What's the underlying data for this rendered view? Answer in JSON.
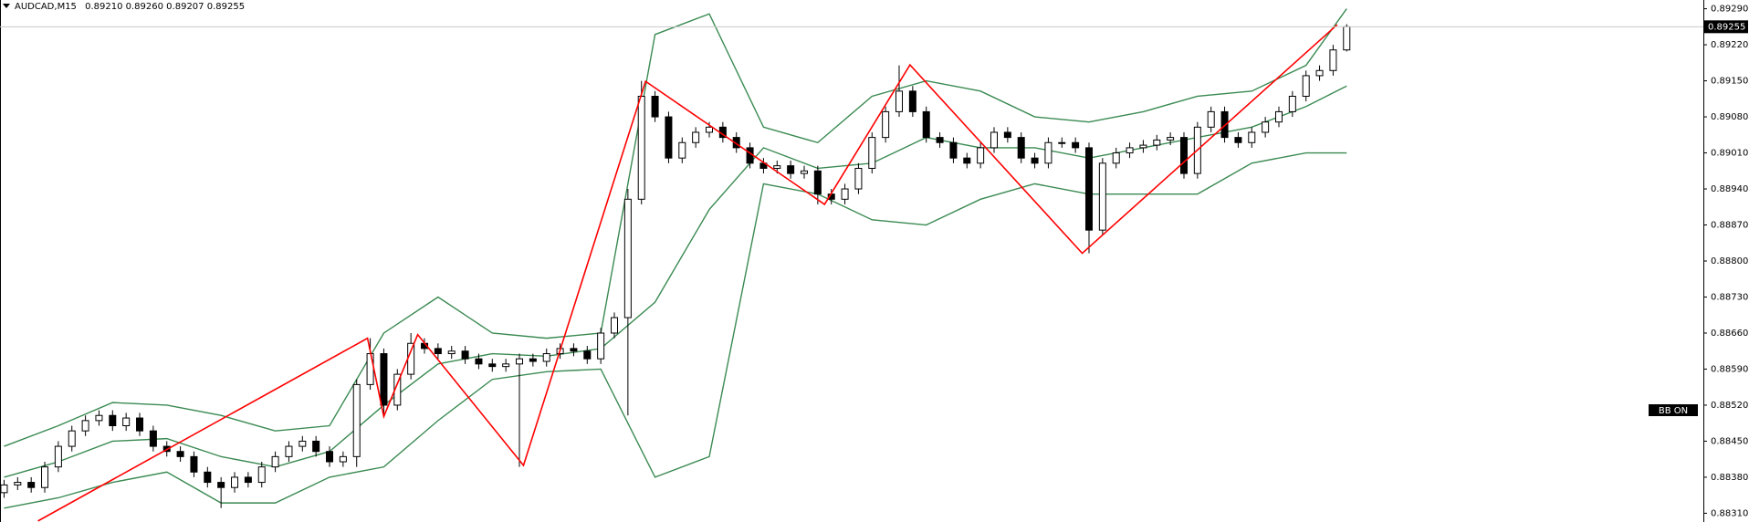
{
  "chart_data": {
    "type": "candlestick",
    "title": "AUDCAD,M15",
    "quote": "0.89210 0.89260 0.89207 0.89255",
    "indicator_label": "BB ON",
    "up_color": "#ffffff",
    "down_color": "#000000",
    "x": [
      0,
      1,
      2,
      3,
      4,
      5,
      6,
      7,
      8,
      9,
      10,
      11,
      12,
      13,
      14,
      15,
      16,
      17,
      18,
      19,
      20,
      21,
      22,
      23,
      24,
      25,
      26,
      27,
      28,
      29,
      30,
      31,
      32,
      33,
      34,
      35,
      36,
      37,
      38,
      39,
      40,
      41,
      42,
      43,
      44,
      45,
      46,
      47,
      48,
      49,
      50,
      51,
      52,
      53,
      54,
      55,
      56,
      57,
      58,
      59,
      60,
      61,
      62,
      63,
      64,
      65,
      66,
      67,
      68,
      69,
      70,
      71,
      72,
      73,
      74,
      75,
      76,
      77,
      78,
      79,
      80,
      81,
      82,
      83,
      84,
      85,
      86,
      87,
      88,
      89,
      90,
      91,
      92,
      93,
      94,
      95,
      96,
      97,
      98,
      99
    ],
    "open": [
      0.8835,
      0.88365,
      0.8837,
      0.8836,
      0.884,
      0.8844,
      0.8847,
      0.8849,
      0.885,
      0.8848,
      0.88495,
      0.8847,
      0.8844,
      0.8843,
      0.8842,
      0.8839,
      0.8837,
      0.8836,
      0.8838,
      0.8837,
      0.884,
      0.8842,
      0.8844,
      0.8845,
      0.8843,
      0.8841,
      0.8842,
      0.8856,
      0.8862,
      0.8852,
      0.8858,
      0.8864,
      0.8863,
      0.8862,
      0.88625,
      0.8861,
      0.886,
      0.88595,
      0.886,
      0.8861,
      0.88605,
      0.8862,
      0.8863,
      0.88625,
      0.8861,
      0.8866,
      0.8869,
      0.8892,
      0.8912,
      0.8908,
      0.89,
      0.8903,
      0.8905,
      0.8906,
      0.8904,
      0.8902,
      0.8899,
      0.8898,
      0.88985,
      0.8897,
      0.88975,
      0.8893,
      0.8892,
      0.8894,
      0.8898,
      0.8904,
      0.8909,
      0.8913,
      0.8909,
      0.8904,
      0.8903,
      0.89,
      0.8899,
      0.8902,
      0.8905,
      0.8904,
      0.89,
      0.8899,
      0.8903,
      0.8903,
      0.8902,
      0.8886,
      0.8899,
      0.8901,
      0.8902,
      0.89025,
      0.89035,
      0.8904,
      0.8897,
      0.8906,
      0.8909,
      0.8904,
      0.8903,
      0.8905,
      0.8907,
      0.8909,
      0.8912,
      0.8916,
      0.8917,
      0.8921
    ],
    "high": [
      0.88375,
      0.8838,
      0.8838,
      0.8841,
      0.8845,
      0.8848,
      0.885,
      0.8851,
      0.8851,
      0.88505,
      0.88505,
      0.8848,
      0.8845,
      0.8844,
      0.8843,
      0.884,
      0.8838,
      0.8839,
      0.8839,
      0.8841,
      0.8843,
      0.8845,
      0.8846,
      0.8846,
      0.8844,
      0.8843,
      0.8857,
      0.8865,
      0.8863,
      0.8859,
      0.8866,
      0.8865,
      0.8864,
      0.88635,
      0.88635,
      0.8862,
      0.8861,
      0.8861,
      0.8862,
      0.8862,
      0.8863,
      0.8864,
      0.8864,
      0.88635,
      0.8867,
      0.887,
      0.8894,
      0.8915,
      0.8913,
      0.8909,
      0.8904,
      0.8906,
      0.8907,
      0.8907,
      0.8905,
      0.8903,
      0.89,
      0.88995,
      0.88995,
      0.88985,
      0.88985,
      0.8894,
      0.8895,
      0.8899,
      0.8905,
      0.891,
      0.8918,
      0.8914,
      0.891,
      0.8905,
      0.8904,
      0.8901,
      0.8903,
      0.8906,
      0.8906,
      0.8905,
      0.8901,
      0.8904,
      0.8904,
      0.8904,
      0.8903,
      0.89,
      0.8902,
      0.8903,
      0.89035,
      0.89045,
      0.8905,
      0.8905,
      0.8907,
      0.891,
      0.891,
      0.8905,
      0.8906,
      0.8908,
      0.891,
      0.8913,
      0.8917,
      0.8918,
      0.8922,
      0.8926
    ],
    "low": [
      0.8834,
      0.88355,
      0.8835,
      0.8835,
      0.8839,
      0.8843,
      0.8846,
      0.8848,
      0.8847,
      0.8847,
      0.8846,
      0.8843,
      0.8842,
      0.8841,
      0.8838,
      0.8836,
      0.8832,
      0.8835,
      0.8836,
      0.8836,
      0.8839,
      0.8841,
      0.8843,
      0.8842,
      0.884,
      0.884,
      0.884,
      0.8855,
      0.885,
      0.8851,
      0.8857,
      0.8862,
      0.8861,
      0.8861,
      0.886,
      0.8859,
      0.88585,
      0.88585,
      0.884,
      0.88595,
      0.88595,
      0.8861,
      0.88615,
      0.886,
      0.886,
      0.8865,
      0.885,
      0.8891,
      0.8907,
      0.8899,
      0.8899,
      0.8902,
      0.8904,
      0.8903,
      0.8901,
      0.8898,
      0.8897,
      0.8897,
      0.8896,
      0.8896,
      0.8891,
      0.8891,
      0.8891,
      0.8893,
      0.8897,
      0.8903,
      0.8908,
      0.8908,
      0.8903,
      0.8902,
      0.8899,
      0.8898,
      0.8898,
      0.8901,
      0.8903,
      0.8899,
      0.8898,
      0.8898,
      0.8902,
      0.8901,
      0.88815,
      0.8885,
      0.8898,
      0.89,
      0.8901,
      0.89015,
      0.89025,
      0.8896,
      0.8896,
      0.8905,
      0.8903,
      0.8902,
      0.8902,
      0.8904,
      0.8906,
      0.8908,
      0.8911,
      0.8915,
      0.8916,
      0.89207
    ],
    "close": [
      0.88365,
      0.8837,
      0.8836,
      0.884,
      0.8844,
      0.8847,
      0.8849,
      0.885,
      0.8848,
      0.88495,
      0.8847,
      0.8844,
      0.8843,
      0.8842,
      0.8839,
      0.8837,
      0.8836,
      0.8838,
      0.8837,
      0.884,
      0.8842,
      0.8844,
      0.8845,
      0.8843,
      0.8841,
      0.8842,
      0.8856,
      0.8862,
      0.8852,
      0.8858,
      0.8864,
      0.8863,
      0.8862,
      0.88625,
      0.8861,
      0.886,
      0.88595,
      0.886,
      0.8861,
      0.88605,
      0.8862,
      0.8863,
      0.88625,
      0.8861,
      0.8866,
      0.8869,
      0.8892,
      0.8912,
      0.8908,
      0.89,
      0.8903,
      0.8905,
      0.8906,
      0.8904,
      0.8902,
      0.8899,
      0.8898,
      0.88985,
      0.8897,
      0.88975,
      0.8893,
      0.8892,
      0.8894,
      0.8898,
      0.8904,
      0.8909,
      0.8913,
      0.8909,
      0.8904,
      0.8903,
      0.89,
      0.8899,
      0.8902,
      0.8905,
      0.8904,
      0.89,
      0.8899,
      0.8903,
      0.8903,
      0.8902,
      0.8886,
      0.8899,
      0.8901,
      0.8902,
      0.89025,
      0.89035,
      0.8904,
      0.8897,
      0.8906,
      0.8909,
      0.8904,
      0.8903,
      0.8905,
      0.8907,
      0.8909,
      0.8912,
      0.8916,
      0.8917,
      0.8921,
      0.89255
    ],
    "xlim": [
      -0.3,
      125.3
    ],
    "ylim": [
      0.88293,
      0.89307
    ],
    "yticks": [
      {
        "value": 0.8929,
        "label": "0.89290"
      },
      {
        "value": 0.8922,
        "label": "0.89220"
      },
      {
        "value": 0.8915,
        "label": "0.89150"
      },
      {
        "value": 0.8908,
        "label": "0.89080"
      },
      {
        "value": 0.8901,
        "label": "0.89010"
      },
      {
        "value": 0.8894,
        "label": "0.88940"
      },
      {
        "value": 0.8887,
        "label": "0.88870"
      },
      {
        "value": 0.888,
        "label": "0.88800"
      },
      {
        "value": 0.8873,
        "label": "0.88730"
      },
      {
        "value": 0.8866,
        "label": "0.88660"
      },
      {
        "value": 0.8859,
        "label": "0.88590"
      },
      {
        "value": 0.8852,
        "label": "0.88520"
      },
      {
        "value": 0.8845,
        "label": "0.88450"
      },
      {
        "value": 0.8838,
        "label": "0.88380"
      },
      {
        "value": 0.8831,
        "label": "0.88310"
      }
    ],
    "last_price": {
      "value": 0.89255,
      "label": "0.89255"
    },
    "bands": {
      "color": "#3a8a52",
      "x": [
        0,
        4,
        8,
        12,
        16,
        20,
        24,
        28,
        32,
        36,
        40,
        44,
        48,
        52,
        56,
        60,
        64,
        68,
        72,
        76,
        80,
        84,
        88,
        92,
        96,
        99
      ],
      "upper": [
        0.8844,
        0.8848,
        0.88525,
        0.8852,
        0.885,
        0.8847,
        0.8848,
        0.8866,
        0.8873,
        0.8866,
        0.8865,
        0.8866,
        0.8924,
        0.8928,
        0.8906,
        0.8903,
        0.8912,
        0.8915,
        0.8913,
        0.8908,
        0.8907,
        0.8909,
        0.8912,
        0.8913,
        0.8918,
        0.8929
      ],
      "middle": [
        0.8838,
        0.8841,
        0.8845,
        0.88455,
        0.8842,
        0.884,
        0.8843,
        0.8852,
        0.886,
        0.8862,
        0.88615,
        0.8863,
        0.8872,
        0.889,
        0.8902,
        0.8898,
        0.8899,
        0.8904,
        0.8902,
        0.8902,
        0.89,
        0.8902,
        0.8904,
        0.8906,
        0.891,
        0.8914
      ],
      "lower": [
        0.8832,
        0.8834,
        0.8837,
        0.8839,
        0.8833,
        0.8833,
        0.8838,
        0.884,
        0.8849,
        0.8857,
        0.88585,
        0.8859,
        0.8838,
        0.8842,
        0.8895,
        0.8893,
        0.8888,
        0.8887,
        0.8892,
        0.8895,
        0.8893,
        0.8893,
        0.8893,
        0.8899,
        0.8901,
        0.8901
      ]
    },
    "zigzag": {
      "color": "#ff0000",
      "x": [
        2.5,
        26.8,
        28,
        30.5,
        38.3,
        47.3,
        60.5,
        66.8,
        79.5,
        98.3
      ],
      "values": [
        0.88295,
        0.8865,
        0.88498,
        0.88657,
        0.88403,
        0.89149,
        0.8891,
        0.89181,
        0.88815,
        0.89259
      ]
    }
  }
}
